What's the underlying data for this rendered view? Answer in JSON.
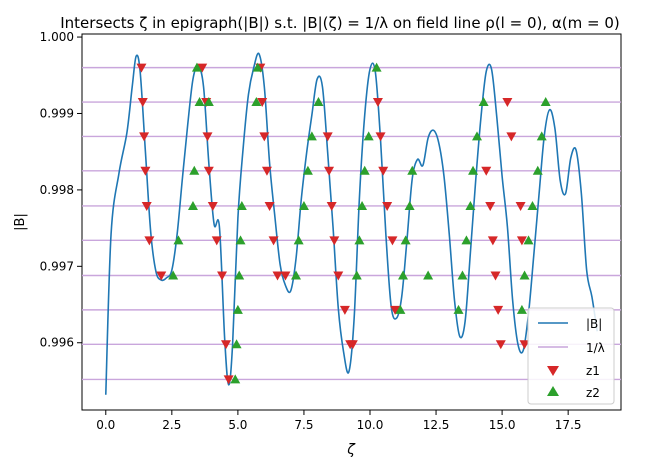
{
  "chart_data": {
    "type": "line",
    "title": "Intersects ζ in epigraph(|B|) s.t. |B|(ζ) = 1/λ on field line ρ(l = 0), α(m = 0)",
    "xlabel": "ζ",
    "ylabel": "|B|",
    "xlim": [
      -0.9,
      19.5
    ],
    "ylim": [
      0.99512,
      1.00004
    ],
    "x_ticks": [
      0.0,
      2.5,
      5.0,
      7.5,
      10.0,
      12.5,
      15.0,
      17.5
    ],
    "x_tick_labels": [
      "0.0",
      "2.5",
      "5.0",
      "7.5",
      "10.0",
      "12.5",
      "15.0",
      "17.5"
    ],
    "y_ticks": [
      0.996,
      0.997,
      0.998,
      0.999,
      1.0
    ],
    "y_tick_labels": [
      "0.996",
      "0.997",
      "0.998",
      "0.999",
      "1.000"
    ],
    "grid": false,
    "legend": {
      "placement": "lower-right",
      "entries": [
        {
          "label": "|B|",
          "marker": "line",
          "color": "#1f77b4"
        },
        {
          "label": "1/λ",
          "marker": "line",
          "color": "#c9a6dc"
        },
        {
          "label": "z1",
          "marker": "triangle-down",
          "color": "#d62728"
        },
        {
          "label": "z2",
          "marker": "triangle-up",
          "color": "#2ca02c"
        }
      ]
    },
    "colors": {
      "B": "#1f77b4",
      "inv_lambda": "#c9a6dc",
      "z1": "#d62728",
      "z2": "#2ca02c"
    },
    "inv_lambda_levels": [
      0.99552,
      0.99598,
      0.99643,
      0.99688,
      0.99734,
      0.99779,
      0.99825,
      0.9987,
      0.99915,
      0.9996
    ],
    "series_B": {
      "name": "|B|",
      "x": [
        0.0,
        0.2,
        0.5,
        0.8,
        1.0,
        1.15,
        1.3,
        1.5,
        1.7,
        1.9,
        2.1,
        2.3,
        2.5,
        2.7,
        2.9,
        3.1,
        3.3,
        3.5,
        3.7,
        3.9,
        4.1,
        4.3,
        4.5,
        4.65,
        4.8,
        5.0,
        5.2,
        5.4,
        5.6,
        5.8,
        6.0,
        6.2,
        6.4,
        6.6,
        6.8,
        7.0,
        7.2,
        7.4,
        7.6,
        7.8,
        8.0,
        8.2,
        8.4,
        8.6,
        8.8,
        9.0,
        9.2,
        9.4,
        9.6,
        9.8,
        10.0,
        10.2,
        10.4,
        10.6,
        10.8,
        11.0,
        11.2,
        11.4,
        11.6,
        11.8,
        12.0,
        12.2,
        12.4,
        12.6,
        12.8,
        13.0,
        13.2,
        13.4,
        13.6,
        13.8,
        14.0,
        14.2,
        14.4,
        14.6,
        14.8,
        15.0,
        15.2,
        15.4,
        15.6,
        15.8,
        16.0,
        16.2,
        16.4,
        16.6,
        16.8,
        17.0,
        17.2,
        17.4,
        17.6,
        17.8,
        18.0,
        18.2,
        18.4,
        18.6
      ],
      "values": [
        0.99532,
        0.99742,
        0.99822,
        0.99875,
        0.99935,
        0.99975,
        0.99955,
        0.9985,
        0.99745,
        0.99693,
        0.99682,
        0.99685,
        0.99695,
        0.99742,
        0.99815,
        0.99885,
        0.99945,
        0.99962,
        0.99935,
        0.99835,
        0.99755,
        0.99752,
        0.99605,
        0.99545,
        0.99598,
        0.99763,
        0.99855,
        0.99925,
        0.9996,
        0.99978,
        0.99935,
        0.99835,
        0.99765,
        0.99702,
        0.99675,
        0.99668,
        0.9971,
        0.99788,
        0.99848,
        0.99898,
        0.99945,
        0.99935,
        0.99848,
        0.99752,
        0.99645,
        0.99588,
        0.99562,
        0.99632,
        0.9979,
        0.99898,
        0.99958,
        0.99955,
        0.99865,
        0.99742,
        0.99648,
        0.99632,
        0.9966,
        0.99735,
        0.99815,
        0.9984,
        0.99832,
        0.99868,
        0.99878,
        0.99862,
        0.99818,
        0.99742,
        0.99655,
        0.99608,
        0.99628,
        0.99718,
        0.99812,
        0.99895,
        0.99955,
        0.99958,
        0.99895,
        0.99818,
        0.99752,
        0.99655,
        0.99598,
        0.9959,
        0.99638,
        0.99715,
        0.99795,
        0.99872,
        0.99905,
        0.9988,
        0.99812,
        0.99795,
        0.99842,
        0.99852,
        0.99795,
        0.99695,
        0.9966,
        0.99615
      ]
    },
    "z1": {
      "name": "z1",
      "x": [
        1.35,
        1.4,
        1.45,
        1.5,
        1.55,
        1.65,
        2.1,
        3.65,
        3.8,
        3.85,
        3.9,
        4.05,
        4.2,
        4.4,
        4.55,
        4.65,
        5.85,
        5.92,
        6.0,
        6.1,
        6.2,
        6.35,
        6.5,
        6.8,
        8.4,
        8.45,
        8.55,
        8.65,
        8.8,
        9.05,
        9.25,
        9.35,
        10.3,
        10.4,
        10.5,
        10.65,
        10.85,
        10.95,
        14.4,
        14.55,
        14.65,
        14.75,
        14.85,
        14.95,
        15.2,
        15.35,
        15.7,
        15.75,
        15.85
      ],
      "values": [
        0.9996,
        0.99915,
        0.9987,
        0.99825,
        0.99779,
        0.99734,
        0.99688,
        0.9996,
        0.99915,
        0.9987,
        0.99825,
        0.99779,
        0.99734,
        0.99688,
        0.99598,
        0.99552,
        0.9996,
        0.99915,
        0.9987,
        0.99825,
        0.99779,
        0.99734,
        0.99688,
        0.99688,
        0.9987,
        0.99825,
        0.99779,
        0.99734,
        0.99688,
        0.99643,
        0.99598,
        0.99598,
        0.99915,
        0.9987,
        0.99825,
        0.99779,
        0.99734,
        0.99643,
        0.99825,
        0.99779,
        0.99734,
        0.99688,
        0.99643,
        0.99598,
        0.99915,
        0.9987,
        0.99779,
        0.99734,
        0.99598
      ]
    },
    "z2": {
      "name": "z2",
      "x": [
        2.55,
        2.75,
        3.3,
        3.35,
        3.45,
        3.55,
        3.9,
        4.9,
        4.95,
        5.0,
        5.05,
        5.1,
        5.15,
        5.7,
        5.75,
        7.2,
        7.3,
        7.5,
        7.65,
        7.8,
        8.05,
        9.5,
        9.6,
        9.7,
        9.8,
        9.95,
        10.25,
        11.15,
        11.25,
        11.35,
        11.5,
        11.6,
        12.2,
        13.35,
        13.5,
        13.65,
        13.8,
        13.9,
        14.05,
        14.3,
        15.75,
        15.85,
        16.0,
        16.15,
        16.35,
        16.5,
        16.65
      ],
      "values": [
        0.99688,
        0.99734,
        0.99779,
        0.99825,
        0.9996,
        0.99915,
        0.99915,
        0.99552,
        0.99598,
        0.99643,
        0.99688,
        0.99734,
        0.99779,
        0.99915,
        0.9996,
        0.99688,
        0.99734,
        0.99779,
        0.99825,
        0.9987,
        0.99915,
        0.99688,
        0.99734,
        0.99779,
        0.99825,
        0.9987,
        0.9996,
        0.99643,
        0.99688,
        0.99734,
        0.99779,
        0.99825,
        0.99688,
        0.99643,
        0.99688,
        0.99734,
        0.99779,
        0.99825,
        0.9987,
        0.99915,
        0.99643,
        0.99688,
        0.99734,
        0.99779,
        0.99825,
        0.9987,
        0.99915
      ]
    }
  }
}
